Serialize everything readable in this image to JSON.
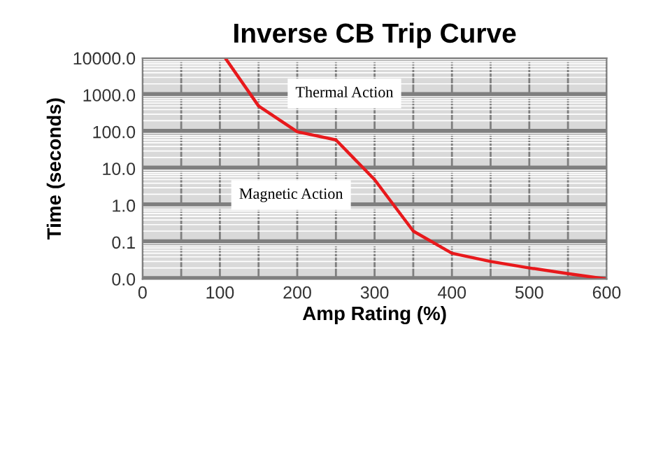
{
  "chart_data": {
    "type": "line",
    "title": "Inverse CB Trip Curve",
    "xlabel": "Amp Rating (%)",
    "ylabel": "Time (seconds)",
    "x": [
      107,
      150,
      200,
      250,
      300,
      350,
      400,
      450,
      500,
      550,
      600
    ],
    "series": [
      {
        "color": "#e8191c",
        "values": [
          10000,
          500,
          100,
          60,
          5,
          0.2,
          0.05,
          0.03,
          0.02,
          0.014,
          0.01
        ]
      }
    ],
    "log": "y",
    "xlim": [
      0,
      600
    ],
    "ylim": [
      0.01,
      10000
    ],
    "xticks": [
      0,
      100,
      200,
      300,
      400,
      500,
      600
    ],
    "yticks": [
      {
        "value": 0.01,
        "label": "0.0"
      },
      {
        "value": 0.1,
        "label": "0.1"
      },
      {
        "value": 1,
        "label": "1.0"
      },
      {
        "value": 10,
        "label": "10.0"
      },
      {
        "value": 100,
        "label": "100.0"
      },
      {
        "value": 1000,
        "label": "1000.0"
      },
      {
        "value": 10000,
        "label": "10000.0"
      }
    ],
    "grid": true,
    "marker": "none",
    "line_style": "solid",
    "annotations": [
      "Thermal Action",
      "Magnetic Action"
    ]
  }
}
